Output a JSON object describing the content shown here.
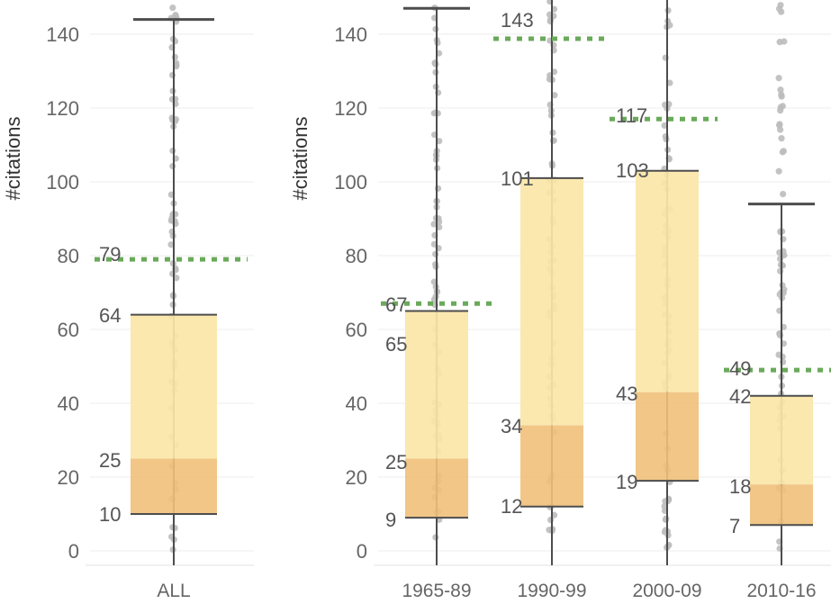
{
  "chart_data": [
    {
      "type": "box",
      "ylabel": "#citations",
      "ylim": [
        0,
        150
      ],
      "yticks": [
        0,
        20,
        40,
        60,
        80,
        100,
        120,
        140
      ],
      "grid": true,
      "categories": [
        "ALL"
      ],
      "boxes": [
        {
          "category": "ALL",
          "whisker_low": 0,
          "q1": 10,
          "median": 25,
          "q3": 64,
          "whisker_high": 144,
          "mean": 79,
          "labels": [
            "79",
            "64",
            "25",
            "10"
          ]
        }
      ]
    },
    {
      "type": "box",
      "ylabel": "#citations",
      "ylim": [
        0,
        150
      ],
      "yticks": [
        0,
        20,
        40,
        60,
        80,
        100,
        120,
        140
      ],
      "grid": true,
      "categories": [
        "1965-89",
        "1990-99",
        "2000-09",
        "2010-16"
      ],
      "boxes": [
        {
          "category": "1965-89",
          "whisker_low": 0,
          "q1": 9,
          "median": 25,
          "q3": 65,
          "whisker_high": 147,
          "mean": 67,
          "labels": [
            "67",
            "65",
            "25",
            "9"
          ]
        },
        {
          "category": "1990-99",
          "whisker_low": 0,
          "q1": 12,
          "median": 34,
          "q3": 101,
          "whisker_high": 160,
          "mean": 143,
          "labels": [
            "143",
            "101",
            "34",
            "12"
          ]
        },
        {
          "category": "2000-09",
          "whisker_low": 0,
          "q1": 19,
          "median": 43,
          "q3": 103,
          "whisker_high": 160,
          "mean": 117,
          "labels": [
            "117",
            "103",
            "43",
            "19"
          ]
        },
        {
          "category": "2010-16",
          "whisker_low": 0,
          "q1": 7,
          "median": 18,
          "q3": 42,
          "whisker_high": 94,
          "mean": 49,
          "labels": [
            "49",
            "42",
            "18",
            "7"
          ]
        }
      ]
    }
  ],
  "colors": {
    "upper_box": "#fae6a8",
    "lower_box": "#f0c07a",
    "mean_line": "#6aaa5a",
    "whisker": "#4d4d4d",
    "points": "#bdbdbd",
    "grid": "#ececec"
  }
}
